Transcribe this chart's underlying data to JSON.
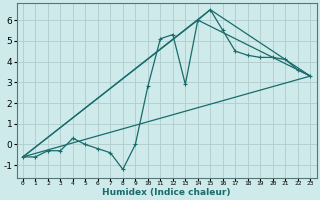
{
  "xlabel": "Humidex (Indice chaleur)",
  "ylabel": "",
  "background_color": "#ceeaea",
  "grid_color": "#b0cccc",
  "line_color": "#1a6b6b",
  "xlim": [
    -0.5,
    23.5
  ],
  "ylim": [
    -1.6,
    6.8
  ],
  "xticks": [
    0,
    1,
    2,
    3,
    4,
    5,
    6,
    7,
    8,
    9,
    10,
    11,
    12,
    13,
    14,
    15,
    16,
    17,
    18,
    19,
    20,
    21,
    22,
    23
  ],
  "yticks": [
    -1,
    0,
    1,
    2,
    3,
    4,
    5,
    6
  ],
  "series1_x": [
    0,
    1,
    2,
    3,
    4,
    5,
    6,
    7,
    8,
    9,
    10,
    11,
    12,
    13,
    14,
    15,
    16,
    17,
    18,
    19,
    20,
    21,
    22,
    23
  ],
  "series1_y": [
    -0.6,
    -0.6,
    -0.3,
    -0.3,
    0.3,
    0.0,
    -0.2,
    -0.4,
    -1.2,
    0.0,
    2.8,
    5.1,
    5.3,
    2.9,
    6.0,
    6.5,
    5.5,
    4.5,
    4.3,
    4.2,
    4.2,
    4.1,
    3.6,
    3.3
  ],
  "series2_x": [
    0,
    23
  ],
  "series2_y": [
    -0.6,
    3.3
  ],
  "series3_x": [
    0,
    14,
    23
  ],
  "series3_y": [
    -0.6,
    6.0,
    3.3
  ],
  "series4_x": [
    0,
    15,
    23
  ],
  "series4_y": [
    -0.6,
    6.5,
    3.3
  ]
}
